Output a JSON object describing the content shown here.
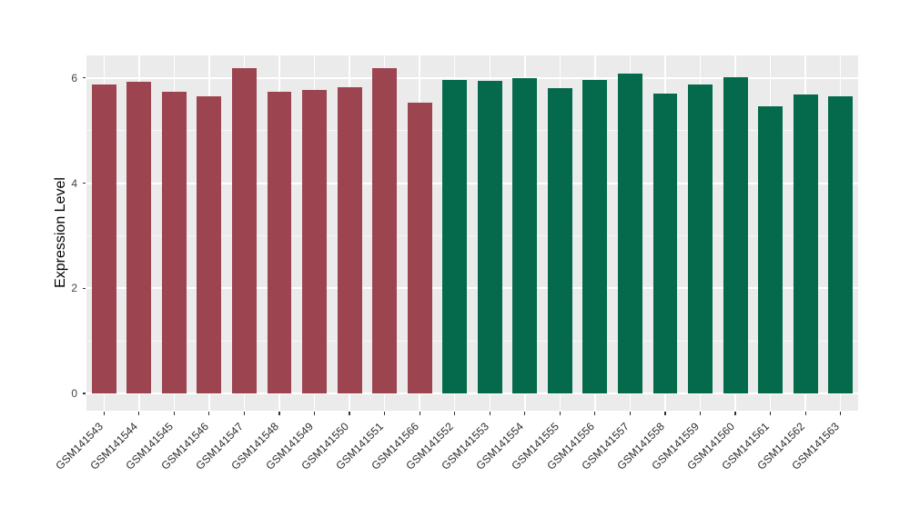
{
  "chart_data": {
    "type": "bar",
    "title": "",
    "xlabel": "",
    "ylabel": "Expression Level",
    "categories": [
      "GSM141543",
      "GSM141544",
      "GSM141545",
      "GSM141546",
      "GSM141547",
      "GSM141548",
      "GSM141549",
      "GSM141550",
      "GSM141551",
      "GSM141566",
      "GSM141552",
      "GSM141553",
      "GSM141554",
      "GSM141555",
      "GSM141556",
      "GSM141557",
      "GSM141558",
      "GSM141559",
      "GSM141560",
      "GSM141561",
      "GSM141562",
      "GSM141563"
    ],
    "values": [
      5.87,
      5.93,
      5.73,
      5.65,
      6.18,
      5.73,
      5.78,
      5.82,
      6.18,
      5.53,
      5.97,
      5.95,
      6.0,
      5.81,
      5.96,
      6.08,
      5.71,
      5.88,
      6.02,
      5.46,
      5.68,
      5.65
    ],
    "groups": [
      "group1",
      "group1",
      "group1",
      "group1",
      "group1",
      "group1",
      "group1",
      "group1",
      "group1",
      "group1",
      "group2",
      "group2",
      "group2",
      "group2",
      "group2",
      "group2",
      "group2",
      "group2",
      "group2",
      "group2",
      "group2",
      "group2"
    ],
    "group_colors": {
      "group1": "#9C4450",
      "group2": "#056A4C"
    },
    "yticks": [
      0,
      2,
      4,
      6
    ],
    "yticks_minor": [
      1,
      3,
      5
    ],
    "ylim": [
      -0.33,
      6.43
    ],
    "bar_width_frac": 0.7,
    "x_label_rotation": 45,
    "grid": true,
    "legend": "none",
    "panel_bg": "#EBEBEB",
    "grid_color": "#FFFFFF"
  }
}
